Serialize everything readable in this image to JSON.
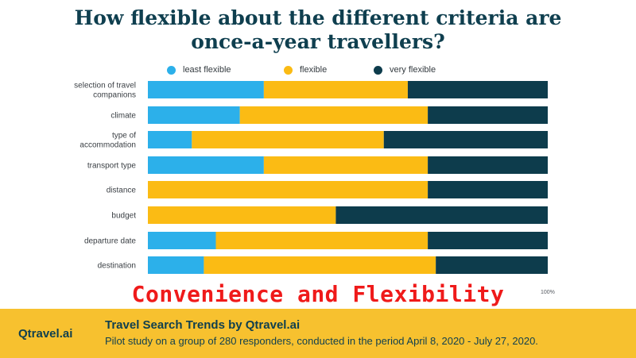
{
  "chart_data": {
    "type": "bar",
    "orientation": "horizontal",
    "stacked": true,
    "title_lines": [
      "How flexible about the different criteria are",
      "once-a-year travellers?"
    ],
    "categories": [
      "selection of travel companions",
      "climate",
      "type of accommodation",
      "transport type",
      "distance",
      "budget",
      "departure date",
      "destination"
    ],
    "category_label_lines": [
      [
        "selection of travel",
        "companions"
      ],
      [
        "climate"
      ],
      [
        "type of",
        "accommodation"
      ],
      [
        "transport type"
      ],
      [
        "distance"
      ],
      [
        "budget"
      ],
      [
        "departure date"
      ],
      [
        "destination"
      ]
    ],
    "series": [
      {
        "name": "least flexible",
        "color": "#2cb0ea",
        "values": [
          29,
          23,
          11,
          29,
          0,
          0,
          17,
          14
        ]
      },
      {
        "name": "flexible",
        "color": "#fbbb14",
        "values": [
          36,
          47,
          48,
          41,
          70,
          47,
          53,
          58
        ]
      },
      {
        "name": "very flexible",
        "color": "#0d3c4c",
        "values": [
          35,
          30,
          41,
          30,
          30,
          53,
          30,
          28
        ]
      }
    ],
    "xlim": [
      0,
      100
    ],
    "axis_end_label": "100%",
    "legend_position": "top",
    "grid": false
  },
  "overlay_text": "Convenience and Flexibility",
  "footer": {
    "brand": "Qtravel.ai",
    "title": "Travel Search Trends by Qtravel.ai",
    "subtitle": "Pilot study on a group of 280 responders, conducted in the period April 8, 2020 - July 27, 2020."
  }
}
